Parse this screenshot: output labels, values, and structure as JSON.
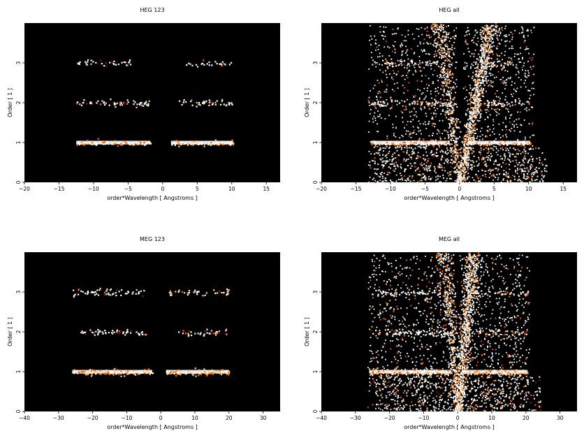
{
  "chart_data": [
    {
      "type": "heatmap",
      "title": "HEG 123",
      "xlabel": "order*Wavelength [ Angstroms ]",
      "ylabel": "Order [ 1 ]",
      "xlim": [
        -20,
        17
      ],
      "ylim": [
        0,
        4
      ],
      "xticks": [
        -20,
        -15,
        -10,
        -5,
        0,
        5,
        10,
        15
      ],
      "yticks": [
        0,
        1,
        2,
        3
      ],
      "colormap": [
        "#000000",
        "#8b1a00",
        "#ff6a00",
        "#ffd39b",
        "#ffffff"
      ],
      "bands": [
        {
          "order": 1,
          "x": [
            -12.5,
            -1.8
          ],
          "intensity": 1.0
        },
        {
          "order": 1,
          "x": [
            1.2,
            10.2
          ],
          "intensity": 1.0
        },
        {
          "order": 2,
          "x": [
            -12.5,
            -2.0
          ],
          "intensity": 0.35
        },
        {
          "order": 2,
          "x": [
            2.2,
            10.2
          ],
          "intensity": 0.3
        },
        {
          "order": 3,
          "x": [
            -12.5,
            -4.5
          ],
          "intensity": 0.25
        },
        {
          "order": 3,
          "x": [
            3.0,
            10.0
          ],
          "intensity": 0.2
        }
      ],
      "wedges": []
    },
    {
      "type": "heatmap",
      "title": "HEG all",
      "xlabel": "order*Wavelength [ Angstroms ]",
      "ylabel": "Order [ 1 ]",
      "xlim": [
        -20,
        17
      ],
      "ylim": [
        0,
        4
      ],
      "xticks": [
        -20,
        -15,
        -10,
        -5,
        0,
        5,
        10,
        15
      ],
      "yticks": [
        0,
        1,
        2,
        3
      ],
      "colormap": [
        "#000000",
        "#8b1a00",
        "#ff6a00",
        "#ffd39b",
        "#ffffff"
      ],
      "bands": [
        {
          "order": 1,
          "x": [
            -12.8,
            -1.5
          ],
          "intensity": 1.0
        },
        {
          "order": 1,
          "x": [
            1.5,
            10.2
          ],
          "intensity": 1.0
        },
        {
          "order": 2,
          "x": [
            -12.8,
            -2.0
          ],
          "intensity": 0.35
        },
        {
          "order": 2,
          "x": [
            2.0,
            10.0
          ],
          "intensity": 0.3
        },
        {
          "order": 3,
          "x": [
            -12.8,
            -3.0
          ],
          "intensity": 0.25
        },
        {
          "order": 3,
          "x": [
            3.0,
            8.0
          ],
          "intensity": 0.2
        }
      ],
      "wedges": [
        {
          "side": "left",
          "x_top": -3.0,
          "density": 0.5
        },
        {
          "side": "right",
          "x_top": 4.5,
          "density": 0.9
        }
      ]
    },
    {
      "type": "heatmap",
      "title": "MEG 123",
      "xlabel": "order*Wavelength [ Angstroms ]",
      "ylabel": "Order [ 1 ]",
      "xlim": [
        -40,
        35
      ],
      "ylim": [
        0,
        4
      ],
      "xticks": [
        -40,
        -30,
        -20,
        -10,
        0,
        10,
        20,
        30
      ],
      "yticks": [
        0,
        1,
        2,
        3
      ],
      "colormap": [
        "#000000",
        "#8b1a00",
        "#ff6a00",
        "#ffd39b",
        "#ffffff"
      ],
      "bands": [
        {
          "order": 1,
          "x": [
            -26.0,
            -2.5
          ],
          "intensity": 1.0
        },
        {
          "order": 1,
          "x": [
            1.5,
            20.0
          ],
          "intensity": 1.0
        },
        {
          "order": 2,
          "x": [
            -24.0,
            -4.5
          ],
          "intensity": 0.35
        },
        {
          "order": 2,
          "x": [
            5.0,
            20.0
          ],
          "intensity": 0.3
        },
        {
          "order": 3,
          "x": [
            -26.0,
            -5.0
          ],
          "intensity": 0.35
        },
        {
          "order": 3,
          "x": [
            2.0,
            21.0
          ],
          "intensity": 0.3
        }
      ],
      "wedges": []
    },
    {
      "type": "heatmap",
      "title": "MEG all",
      "xlabel": "order*Wavelength [ Angstroms ]",
      "ylabel": "Order [ 1 ]",
      "xlim": [
        -40,
        35
      ],
      "ylim": [
        0,
        4
      ],
      "xticks": [
        -40,
        -30,
        -20,
        -10,
        0,
        10,
        20,
        30
      ],
      "yticks": [
        0,
        1,
        2,
        3
      ],
      "colormap": [
        "#000000",
        "#8b1a00",
        "#ff6a00",
        "#ffd39b",
        "#ffffff"
      ],
      "bands": [
        {
          "order": 1,
          "x": [
            -26.0,
            -2.0
          ],
          "intensity": 1.0
        },
        {
          "order": 1,
          "x": [
            2.0,
            20.5
          ],
          "intensity": 1.0
        },
        {
          "order": 2,
          "x": [
            -26.0,
            -3.0
          ],
          "intensity": 0.35
        },
        {
          "order": 2,
          "x": [
            3.0,
            20.5
          ],
          "intensity": 0.3
        },
        {
          "order": 3,
          "x": [
            -26.0,
            -3.0
          ],
          "intensity": 0.35
        },
        {
          "order": 3,
          "x": [
            3.0,
            21.0
          ],
          "intensity": 0.3
        }
      ],
      "wedges": [
        {
          "side": "left",
          "x_top": -4.0,
          "density": 0.5
        },
        {
          "side": "right",
          "x_top": 4.5,
          "density": 0.9
        }
      ]
    }
  ]
}
